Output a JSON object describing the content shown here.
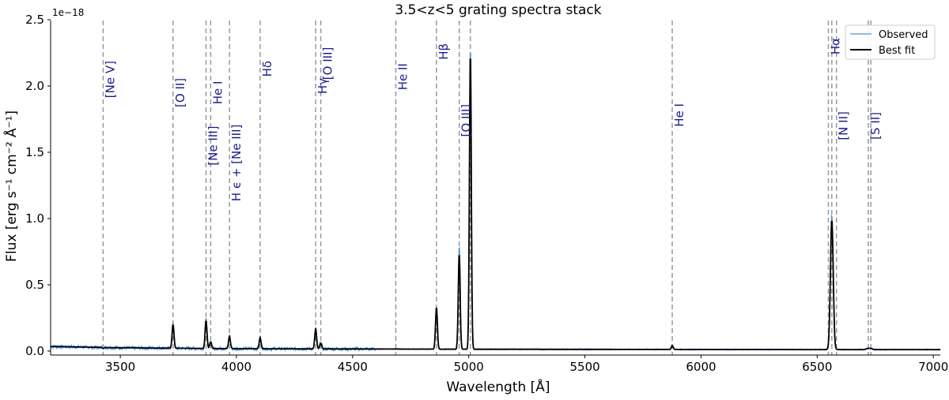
{
  "chart_data": {
    "type": "line",
    "title": "3.5<z<5 grating spectra stack",
    "xlabel": "Wavelength [Å]",
    "ylabel": "Flux  [erg s⁻¹ cm⁻² Å⁻¹]",
    "y_offset_label": "1e−18",
    "xlim": [
      3200,
      7030
    ],
    "ylim": [
      -0.03,
      2.5
    ],
    "xticks": [
      3500,
      4000,
      4500,
      5000,
      5500,
      6000,
      6500,
      7000
    ],
    "yticks": [
      0.0,
      0.5,
      1.0,
      1.5,
      2.0,
      2.5
    ],
    "ytick_labels": [
      "0.0",
      "0.5",
      "1.0",
      "1.5",
      "2.0",
      "2.5"
    ],
    "grid": false,
    "legend": {
      "position": "upper right",
      "entries": [
        {
          "label": "Observed",
          "color": "#4a90e2"
        },
        {
          "label": "Best fit",
          "color": "#000000"
        }
      ]
    },
    "continuum": [
      [
        3200,
        0.035
      ],
      [
        3500,
        0.025
      ],
      [
        4000,
        0.018
      ],
      [
        4500,
        0.016
      ],
      [
        5000,
        0.014
      ],
      [
        6000,
        0.012
      ],
      [
        7030,
        0.011
      ]
    ],
    "series": [
      {
        "name": "Observed",
        "color": "#4a90e2",
        "peaks": [
          {
            "x": 3426,
            "y": 0.03
          },
          {
            "x": 3727,
            "y": 0.21
          },
          {
            "x": 3869,
            "y": 0.24
          },
          {
            "x": 3889,
            "y": 0.07
          },
          {
            "x": 3970,
            "y": 0.12
          },
          {
            "x": 4102,
            "y": 0.11
          },
          {
            "x": 4341,
            "y": 0.18
          },
          {
            "x": 4363,
            "y": 0.07
          },
          {
            "x": 4861,
            "y": 0.34
          },
          {
            "x": 4959,
            "y": 0.8
          },
          {
            "x": 5007,
            "y": 2.32
          },
          {
            "x": 5876,
            "y": 0.05
          },
          {
            "x": 6563,
            "y": 1.03
          },
          {
            "x": 6717,
            "y": 0.02
          },
          {
            "x": 6731,
            "y": 0.02
          }
        ]
      },
      {
        "name": "Best fit",
        "color": "#000000",
        "peaks": [
          {
            "x": 3426,
            "y": 0.02
          },
          {
            "x": 3727,
            "y": 0.2
          },
          {
            "x": 3869,
            "y": 0.23
          },
          {
            "x": 3889,
            "y": 0.07
          },
          {
            "x": 3970,
            "y": 0.11
          },
          {
            "x": 4102,
            "y": 0.1
          },
          {
            "x": 4341,
            "y": 0.17
          },
          {
            "x": 4363,
            "y": 0.06
          },
          {
            "x": 4861,
            "y": 0.33
          },
          {
            "x": 4959,
            "y": 0.74
          },
          {
            "x": 5007,
            "y": 2.27
          },
          {
            "x": 5876,
            "y": 0.04
          },
          {
            "x": 6563,
            "y": 0.99
          },
          {
            "x": 6717,
            "y": 0.02
          },
          {
            "x": 6731,
            "y": 0.02
          }
        ]
      }
    ],
    "emission_lines": [
      {
        "label": "[Ne V]",
        "x": 3426,
        "label_y": 2.05
      },
      {
        "label": "[O II]",
        "x": 3727,
        "label_y": 1.95
      },
      {
        "label": "[Ne III]",
        "x": 3869,
        "label_y": 1.55
      },
      {
        "label": "He I",
        "x": 3889,
        "label_y": 1.95
      },
      {
        "label": "H ϵ + [Ne III]",
        "x": 3970,
        "label_y": 1.42
      },
      {
        "label": "Hδ",
        "x": 4102,
        "label_y": 2.13
      },
      {
        "label": "Hγ",
        "x": 4341,
        "label_y": 2.0
      },
      {
        "label": "[O III]",
        "x": 4363,
        "label_y": 2.17
      },
      {
        "label": "He II",
        "x": 4686,
        "label_y": 2.07
      },
      {
        "label": "Hβ",
        "x": 4861,
        "label_y": 2.26
      },
      {
        "label": "[O III]",
        "x": 4959,
        "label_y": 1.74
      },
      {
        "label": "He I",
        "x": 5876,
        "label_y": 1.78
      },
      {
        "label": "Hα",
        "x": 6548,
        "label_y": 2.3
      },
      {
        "label": "[N II]",
        "x": 6583,
        "label_y": 1.7
      },
      {
        "label": "[S II]",
        "x": 6720,
        "label_y": 1.7
      }
    ],
    "extra_vlines": [
      5007,
      6563,
      6731
    ]
  }
}
